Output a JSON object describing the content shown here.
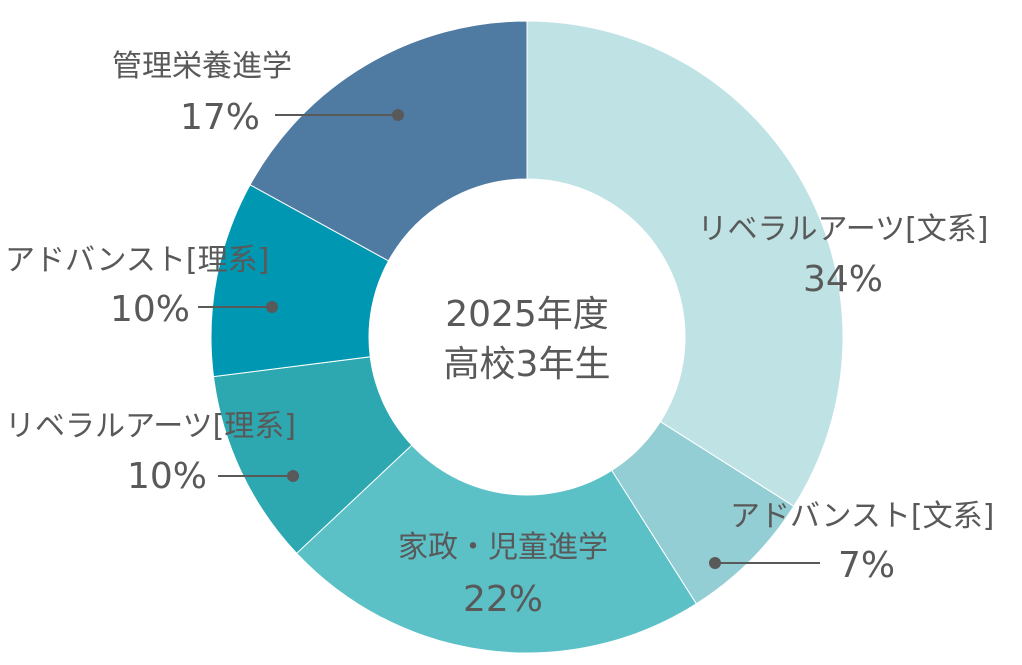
{
  "chart_data": {
    "type": "pie",
    "variant": "donut",
    "title": "2025年度",
    "subtitle": "高校3年生",
    "start": "top",
    "direction": "clockwise",
    "slices": [
      {
        "label": "リベラルアーツ[文系]",
        "value": 34,
        "value_label": "34%",
        "color": "#bfe2e4"
      },
      {
        "label": "アドバンスト[文系]",
        "value": 7,
        "value_label": "7%",
        "color": "#93ced4"
      },
      {
        "label": "家政・児童進学",
        "value": 22,
        "value_label": "22%",
        "color": "#5bc1c6"
      },
      {
        "label": "リベラルアーツ[理系]",
        "value": 10,
        "value_label": "10%",
        "color": "#2da8b0"
      },
      {
        "label": "アドバンスト[理系]",
        "value": 10,
        "value_label": "10%",
        "color": "#0097b2"
      },
      {
        "label": "管理栄養進学",
        "value": 17,
        "value_label": "17%",
        "color": "#4f7ba3"
      }
    ]
  }
}
